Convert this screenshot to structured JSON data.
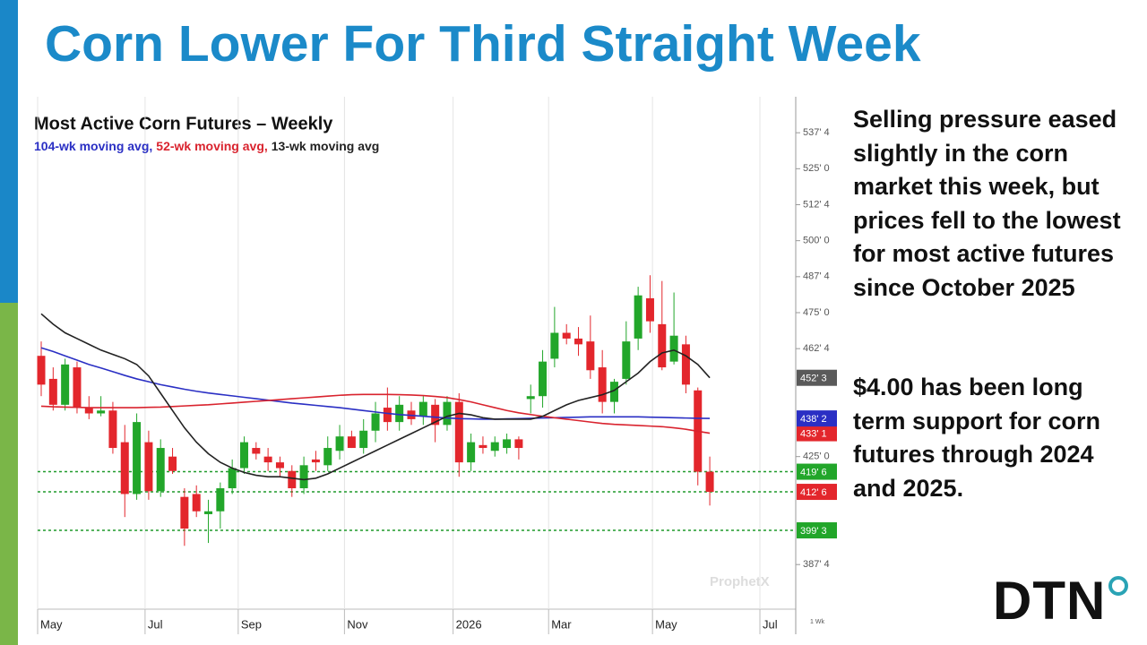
{
  "slide": {
    "title": "Corn Lower For Third Straight Week",
    "paragraphs": [
      "Selling pressure eased slightly in the corn market this week, but prices fell to the lowest for most active futures since October 2025",
      "$4.00 has been long term support for corn futures through 2024 and 2025."
    ],
    "logo": "DTN"
  },
  "chart_data": {
    "type": "candlestick",
    "title": "Most Active Corn Futures – Weekly",
    "watermark": "ProphetX",
    "period": "1 Wk",
    "up_color": "#22a62a",
    "down_color": "#e3262c",
    "open": [
      460,
      452,
      443,
      456,
      442,
      440,
      441,
      430,
      412,
      430,
      413,
      425,
      411,
      412,
      405,
      406,
      414,
      421,
      428,
      425,
      423,
      420,
      414,
      424,
      422,
      427,
      432,
      428,
      434,
      442,
      437,
      441,
      439,
      443,
      436,
      444,
      423,
      429,
      427,
      428,
      431,
      445,
      446,
      459,
      468,
      466,
      465,
      456,
      444,
      452,
      466,
      480,
      471,
      458,
      464,
      448,
      419.75
    ],
    "high": [
      465,
      456,
      459,
      458,
      446,
      446,
      444,
      436,
      440,
      434,
      431,
      428,
      414,
      415,
      410,
      416,
      424,
      432,
      430,
      428,
      425,
      422,
      425,
      427,
      432,
      436,
      434,
      438,
      444,
      449,
      446,
      444,
      446,
      445,
      446,
      447,
      433,
      432,
      432,
      433,
      432,
      450,
      462,
      477,
      471,
      470,
      474,
      462,
      452,
      472,
      484,
      488,
      486,
      482,
      467,
      449,
      425
    ],
    "low": [
      446,
      441,
      441,
      440,
      438,
      439,
      426,
      404,
      410,
      410,
      411,
      419,
      394,
      404,
      395,
      400,
      412,
      419,
      424,
      420,
      418,
      411,
      412,
      420,
      420,
      424,
      428,
      426,
      430,
      434,
      434,
      436,
      436,
      430,
      434,
      418,
      420,
      426,
      425,
      426,
      424,
      440,
      442,
      456,
      464,
      460,
      452,
      440,
      440,
      450,
      462,
      468,
      455,
      457,
      447,
      415,
      408
    ],
    "close": [
      450,
      443,
      457,
      442,
      440,
      441,
      428,
      412,
      437,
      413,
      428,
      420,
      400,
      406,
      406,
      414,
      421,
      430,
      426,
      423,
      421,
      414,
      422,
      423,
      428,
      432,
      428,
      434,
      440,
      437,
      443,
      438,
      444,
      436,
      444,
      423,
      430,
      428,
      430,
      431,
      428,
      446,
      458,
      468,
      466,
      464,
      455,
      444,
      451,
      465,
      481,
      472,
      456,
      467,
      450,
      419.75,
      412.75
    ],
    "series": [
      {
        "name": "104-wk moving avg,",
        "color": "#2a2fc4",
        "values": [
          462.8,
          461.5,
          460,
          458.5,
          457,
          455.8,
          454.5,
          453.2,
          452,
          451,
          450,
          449.2,
          448.4,
          447.7,
          447.1,
          446.6,
          446.1,
          445.6,
          445.1,
          444.6,
          444.1,
          443.6,
          443.2,
          442.8,
          442.4,
          442,
          441.5,
          441,
          440.5,
          440,
          439.6,
          439.3,
          439,
          438.7,
          438.4,
          438.2,
          438.1,
          438,
          438,
          438.1,
          438.2,
          438.3,
          438.4,
          438.5,
          438.6,
          438.7,
          438.8,
          438.8,
          438.8,
          438.8,
          438.8,
          438.7,
          438.6,
          438.5,
          438.4,
          438.3,
          438.25
        ]
      },
      {
        "name": "52-wk moving avg,",
        "color": "#d9232e",
        "values": [
          442.5,
          442.3,
          442.2,
          442.1,
          442,
          442,
          442,
          442,
          442,
          442.1,
          442.2,
          442.4,
          442.6,
          442.8,
          443,
          443.3,
          443.6,
          443.9,
          444.2,
          444.5,
          444.8,
          445.1,
          445.4,
          445.7,
          446,
          446.3,
          446.5,
          446.6,
          446.6,
          446.6,
          446.5,
          446.4,
          446.2,
          445.9,
          445.5,
          444.8,
          444,
          443,
          442,
          441,
          440.2,
          439.6,
          439,
          438.5,
          438,
          437.5,
          437,
          436.5,
          436.2,
          436,
          435.8,
          435.6,
          435.4,
          435,
          434.5,
          433.8,
          433.125
        ]
      },
      {
        "name": "13-wk moving avg",
        "color": "#222222",
        "values": [
          474.6,
          471,
          468,
          466,
          464,
          462,
          460.5,
          459,
          457,
          453,
          447,
          441,
          435,
          430,
          426,
          423,
          421,
          419.5,
          418.5,
          418,
          418,
          417.5,
          417,
          417.5,
          419,
          421,
          423,
          425,
          427,
          429,
          431,
          433,
          435,
          437,
          439,
          440,
          439.5,
          438.5,
          438,
          438,
          438,
          438,
          439,
          441,
          443,
          444.5,
          445.5,
          446.5,
          448,
          451,
          454,
          458,
          461,
          462,
          460,
          457,
          452.375
        ]
      }
    ],
    "ylim": [
      372,
      550
    ],
    "yticks": [
      {
        "value": 387.5,
        "label": "387' 4"
      },
      {
        "value": 425,
        "label": "425' 0"
      },
      {
        "value": 462.5,
        "label": "462' 4"
      },
      {
        "value": 475,
        "label": "475' 0"
      },
      {
        "value": 487.5,
        "label": "487' 4"
      },
      {
        "value": 500,
        "label": "500' 0"
      },
      {
        "value": 512.5,
        "label": "512' 4"
      },
      {
        "value": 525,
        "label": "525' 0"
      },
      {
        "value": 537.5,
        "label": "537' 4"
      }
    ],
    "xlim": [
      0,
      63.5
    ],
    "xticks": [
      {
        "value": 0,
        "label": "May"
      },
      {
        "value": 9,
        "label": "Jul"
      },
      {
        "value": 16.8,
        "label": "Sep"
      },
      {
        "value": 25.7,
        "label": "Nov"
      },
      {
        "value": 34.8,
        "label": "2026"
      },
      {
        "value": 42.8,
        "label": "Mar"
      },
      {
        "value": 51.5,
        "label": "May"
      },
      {
        "value": 60.5,
        "label": "Jul"
      }
    ],
    "support_levels": [
      419.75,
      412.75,
      399.375
    ],
    "support_color": "#1f9a2a",
    "price_labels": [
      {
        "value": 452.375,
        "label": "452' 3",
        "color": "#5a5a5a"
      },
      {
        "value": 433.125,
        "label": "433' 1",
        "color": "#e3262c"
      },
      {
        "value": 438.25,
        "label": "438' 2",
        "color": "#2a2fc4"
      },
      {
        "value": 419.75,
        "label": "419' 6",
        "color": "#22a62a"
      },
      {
        "value": 412.75,
        "label": "412' 6",
        "color": "#e3262c"
      },
      {
        "value": 399.375,
        "label": "399' 3",
        "color": "#22a62a"
      }
    ]
  }
}
